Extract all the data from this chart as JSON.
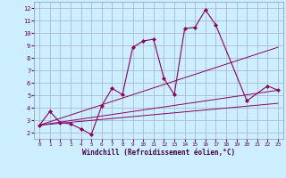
{
  "xlabel": "Windchill (Refroidissement éolien,°C)",
  "bg_color": "#cceeff",
  "grid_color": "#aabbcc",
  "line_color": "#880066",
  "xlim": [
    -0.5,
    23.5
  ],
  "ylim": [
    1.5,
    12.5
  ],
  "yticks": [
    2,
    3,
    4,
    5,
    6,
    7,
    8,
    9,
    10,
    11,
    12
  ],
  "xticks": [
    0,
    1,
    2,
    3,
    4,
    5,
    6,
    7,
    8,
    9,
    10,
    11,
    12,
    13,
    14,
    15,
    16,
    17,
    18,
    19,
    20,
    21,
    22,
    23
  ],
  "main_line": {
    "x": [
      0,
      1,
      2,
      3,
      4,
      5,
      6,
      7,
      8,
      9,
      10,
      11,
      12,
      13,
      14,
      15,
      16,
      17,
      20,
      22,
      23
    ],
    "y": [
      2.6,
      3.7,
      2.8,
      2.7,
      2.3,
      1.85,
      4.15,
      5.55,
      5.05,
      8.85,
      9.35,
      9.5,
      6.35,
      5.05,
      10.35,
      10.45,
      11.85,
      10.65,
      4.55,
      5.75,
      5.4
    ]
  },
  "diag_lines": [
    {
      "x": [
        0,
        23
      ],
      "y": [
        2.6,
        5.4
      ]
    },
    {
      "x": [
        0,
        23
      ],
      "y": [
        2.6,
        8.85
      ]
    },
    {
      "x": [
        0,
        23
      ],
      "y": [
        2.6,
        4.35
      ]
    }
  ]
}
